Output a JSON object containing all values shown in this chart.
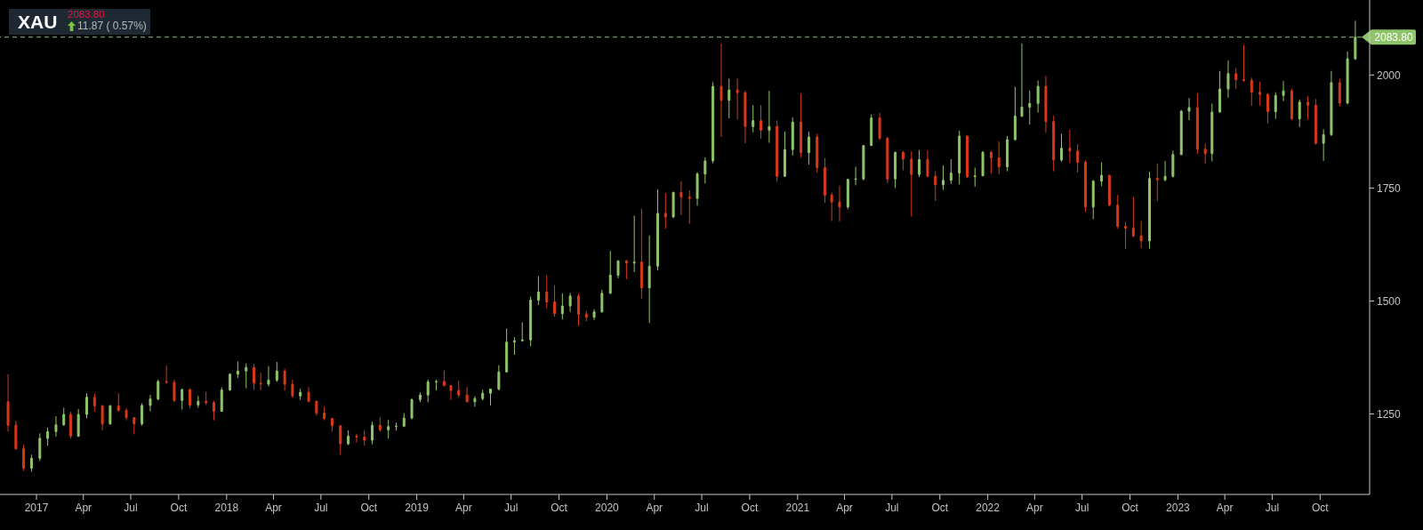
{
  "chart_data": {
    "type": "candlestick",
    "title": "XAU",
    "subtitle": "2083.80",
    "annotations": [
      "11.87 ( 0.57%)"
    ],
    "x": [
      "2016-11-08",
      "2016-11-23",
      "2016-12-08",
      "2016-12-23",
      "2017-01-08",
      "2017-01-23",
      "2017-02-08",
      "2017-02-23",
      "2017-03-08",
      "2017-03-23",
      "2017-04-08",
      "2017-04-23",
      "2017-05-08",
      "2017-05-23",
      "2017-06-08",
      "2017-06-23",
      "2017-07-08",
      "2017-07-23",
      "2017-08-08",
      "2017-08-23",
      "2017-09-08",
      "2017-09-23",
      "2017-10-08",
      "2017-10-23",
      "2017-11-08",
      "2017-11-23",
      "2017-12-08",
      "2017-12-23",
      "2018-01-08",
      "2018-01-23",
      "2018-02-08",
      "2018-02-23",
      "2018-03-08",
      "2018-03-23",
      "2018-04-08",
      "2018-04-23",
      "2018-05-08",
      "2018-05-23",
      "2018-06-08",
      "2018-06-23",
      "2018-07-08",
      "2018-07-23",
      "2018-08-08",
      "2018-08-23",
      "2018-09-08",
      "2018-09-23",
      "2018-10-08",
      "2018-10-23",
      "2018-11-08",
      "2018-11-23",
      "2018-12-08",
      "2018-12-23",
      "2019-01-08",
      "2019-01-23",
      "2019-02-08",
      "2019-02-23",
      "2019-03-08",
      "2019-03-23",
      "2019-04-08",
      "2019-04-23",
      "2019-05-08",
      "2019-05-23",
      "2019-06-08",
      "2019-06-23",
      "2019-07-08",
      "2019-07-23",
      "2019-08-08",
      "2019-08-23",
      "2019-09-08",
      "2019-09-23",
      "2019-10-08",
      "2019-10-23",
      "2019-11-08",
      "2019-11-23",
      "2019-12-08",
      "2019-12-23",
      "2020-01-08",
      "2020-01-23",
      "2020-02-08",
      "2020-02-23",
      "2020-03-08",
      "2020-03-23",
      "2020-04-08",
      "2020-04-23",
      "2020-05-08",
      "2020-05-23",
      "2020-06-08",
      "2020-06-23",
      "2020-07-08",
      "2020-07-23",
      "2020-08-08",
      "2020-08-23",
      "2020-09-08",
      "2020-09-23",
      "2020-10-08",
      "2020-10-23",
      "2020-11-08",
      "2020-11-23",
      "2020-12-08",
      "2020-12-23",
      "2021-01-08",
      "2021-01-23",
      "2021-02-08",
      "2021-02-23",
      "2021-03-08",
      "2021-03-23",
      "2021-04-08",
      "2021-04-23",
      "2021-05-08",
      "2021-05-23",
      "2021-06-08",
      "2021-06-23",
      "2021-07-08",
      "2021-07-23",
      "2021-08-08",
      "2021-08-23",
      "2021-09-08",
      "2021-09-23",
      "2021-10-08",
      "2021-10-23",
      "2021-11-08",
      "2021-11-23",
      "2021-12-08",
      "2021-12-23",
      "2022-01-08",
      "2022-01-23",
      "2022-02-08",
      "2022-02-23",
      "2022-03-08",
      "2022-03-23",
      "2022-04-08",
      "2022-04-23",
      "2022-05-08",
      "2022-05-23",
      "2022-06-08",
      "2022-06-23",
      "2022-07-08",
      "2022-07-23",
      "2022-08-08",
      "2022-08-23",
      "2022-09-08",
      "2022-09-23",
      "2022-10-08",
      "2022-10-23",
      "2022-11-08",
      "2022-11-23",
      "2022-12-08",
      "2022-12-23",
      "2023-01-08",
      "2023-01-23",
      "2023-02-08",
      "2023-02-23",
      "2023-03-08",
      "2023-03-23",
      "2023-04-08",
      "2023-04-23",
      "2023-05-08",
      "2023-05-23",
      "2023-06-08",
      "2023-06-23",
      "2023-07-08",
      "2023-07-23",
      "2023-08-08",
      "2023-08-23",
      "2023-09-08",
      "2023-09-23",
      "2023-10-08",
      "2023-10-23",
      "2023-11-08",
      "2023-11-23",
      "2023-12-08"
    ],
    "ohlc": [
      [
        1277,
        1338,
        1211,
        1225
      ],
      [
        1225,
        1235,
        1171,
        1173
      ],
      [
        1173,
        1182,
        1124,
        1130
      ],
      [
        1130,
        1160,
        1122,
        1152
      ],
      [
        1152,
        1207,
        1146,
        1196
      ],
      [
        1196,
        1220,
        1180,
        1211
      ],
      [
        1211,
        1245,
        1200,
        1226
      ],
      [
        1226,
        1264,
        1224,
        1249
      ],
      [
        1249,
        1255,
        1195,
        1201
      ],
      [
        1201,
        1261,
        1199,
        1249
      ],
      [
        1249,
        1296,
        1240,
        1287
      ],
      [
        1287,
        1295,
        1255,
        1268
      ],
      [
        1268,
        1270,
        1214,
        1228
      ],
      [
        1228,
        1270,
        1226,
        1268
      ],
      [
        1268,
        1296,
        1255,
        1258
      ],
      [
        1258,
        1263,
        1236,
        1242
      ],
      [
        1242,
        1242,
        1205,
        1228
      ],
      [
        1228,
        1274,
        1224,
        1269
      ],
      [
        1269,
        1292,
        1256,
        1283
      ],
      [
        1283,
        1326,
        1280,
        1322
      ],
      [
        1322,
        1357,
        1317,
        1320
      ],
      [
        1320,
        1326,
        1276,
        1280
      ],
      [
        1280,
        1306,
        1260,
        1304
      ],
      [
        1304,
        1306,
        1263,
        1270
      ],
      [
        1270,
        1290,
        1264,
        1278
      ],
      [
        1278,
        1299,
        1270,
        1275
      ],
      [
        1275,
        1279,
        1236,
        1256
      ],
      [
        1256,
        1309,
        1255,
        1303
      ],
      [
        1303,
        1340,
        1301,
        1338
      ],
      [
        1338,
        1366,
        1330,
        1345
      ],
      [
        1345,
        1362,
        1307,
        1353
      ],
      [
        1353,
        1361,
        1303,
        1318
      ],
      [
        1318,
        1341,
        1303,
        1316
      ],
      [
        1316,
        1356,
        1311,
        1325
      ],
      [
        1325,
        1365,
        1321,
        1345
      ],
      [
        1345,
        1350,
        1302,
        1316
      ],
      [
        1316,
        1326,
        1286,
        1290
      ],
      [
        1290,
        1306,
        1281,
        1298
      ],
      [
        1298,
        1310,
        1276,
        1278
      ],
      [
        1278,
        1280,
        1246,
        1252
      ],
      [
        1252,
        1266,
        1236,
        1240
      ],
      [
        1240,
        1241,
        1211,
        1224
      ],
      [
        1224,
        1225,
        1160,
        1184
      ],
      [
        1184,
        1214,
        1181,
        1201
      ],
      [
        1201,
        1206,
        1187,
        1199
      ],
      [
        1199,
        1214,
        1180,
        1192
      ],
      [
        1192,
        1233,
        1183,
        1225
      ],
      [
        1225,
        1243,
        1211,
        1215
      ],
      [
        1215,
        1237,
        1196,
        1222
      ],
      [
        1222,
        1231,
        1213,
        1223
      ],
      [
        1223,
        1252,
        1221,
        1241
      ],
      [
        1241,
        1284,
        1238,
        1282
      ],
      [
        1282,
        1298,
        1276,
        1292
      ],
      [
        1292,
        1326,
        1276,
        1321
      ],
      [
        1321,
        1326,
        1302,
        1322
      ],
      [
        1322,
        1346,
        1311,
        1313
      ],
      [
        1313,
        1314,
        1281,
        1302
      ],
      [
        1302,
        1324,
        1287,
        1292
      ],
      [
        1292,
        1310,
        1276,
        1277
      ],
      [
        1277,
        1289,
        1266,
        1284
      ],
      [
        1284,
        1304,
        1280,
        1296
      ],
      [
        1296,
        1306,
        1269,
        1305
      ],
      [
        1305,
        1358,
        1302,
        1343
      ],
      [
        1343,
        1439,
        1342,
        1409
      ],
      [
        1409,
        1420,
        1381,
        1412
      ],
      [
        1412,
        1453,
        1410,
        1414
      ],
      [
        1414,
        1510,
        1400,
        1502
      ],
      [
        1502,
        1555,
        1491,
        1520
      ],
      [
        1520,
        1557,
        1484,
        1498
      ],
      [
        1498,
        1535,
        1465,
        1472
      ],
      [
        1472,
        1517,
        1459,
        1489
      ],
      [
        1489,
        1518,
        1476,
        1511
      ],
      [
        1511,
        1516,
        1445,
        1471
      ],
      [
        1471,
        1478,
        1455,
        1464
      ],
      [
        1464,
        1482,
        1458,
        1476
      ],
      [
        1476,
        1525,
        1474,
        1517
      ],
      [
        1517,
        1611,
        1516,
        1557
      ],
      [
        1557,
        1589,
        1550,
        1589
      ],
      [
        1589,
        1590,
        1548,
        1584
      ],
      [
        1584,
        1689,
        1564,
        1586
      ],
      [
        1586,
        1704,
        1505,
        1529
      ],
      [
        1529,
        1645,
        1451,
        1577
      ],
      [
        1577,
        1747,
        1568,
        1694
      ],
      [
        1694,
        1739,
        1660,
        1686
      ],
      [
        1686,
        1742,
        1683,
        1740
      ],
      [
        1740,
        1765,
        1690,
        1730
      ],
      [
        1730,
        1745,
        1671,
        1727
      ],
      [
        1727,
        1785,
        1711,
        1781
      ],
      [
        1781,
        1818,
        1760,
        1810
      ],
      [
        1810,
        1984,
        1805,
        1975
      ],
      [
        1975,
        2070,
        1863,
        1944
      ],
      [
        1944,
        1992,
        1904,
        1967
      ],
      [
        1967,
        1992,
        1902,
        1961
      ],
      [
        1961,
        1965,
        1849,
        1886
      ],
      [
        1886,
        1933,
        1873,
        1899
      ],
      [
        1899,
        1933,
        1859,
        1878
      ],
      [
        1878,
        1965,
        1850,
        1886
      ],
      [
        1886,
        1900,
        1764,
        1776
      ],
      [
        1776,
        1875,
        1775,
        1835
      ],
      [
        1835,
        1906,
        1822,
        1896
      ],
      [
        1896,
        1959,
        1817,
        1828
      ],
      [
        1828,
        1875,
        1802,
        1863
      ],
      [
        1863,
        1870,
        1784,
        1795
      ],
      [
        1795,
        1816,
        1717,
        1734
      ],
      [
        1734,
        1740,
        1677,
        1719
      ],
      [
        1719,
        1755,
        1676,
        1708
      ],
      [
        1708,
        1770,
        1703,
        1769
      ],
      [
        1769,
        1797,
        1756,
        1770
      ],
      [
        1770,
        1845,
        1767,
        1844
      ],
      [
        1844,
        1913,
        1843,
        1905
      ],
      [
        1905,
        1916,
        1856,
        1860
      ],
      [
        1860,
        1863,
        1761,
        1770
      ],
      [
        1770,
        1830,
        1750,
        1829
      ],
      [
        1829,
        1832,
        1789,
        1814
      ],
      [
        1814,
        1831,
        1687,
        1780
      ],
      [
        1780,
        1834,
        1774,
        1813
      ],
      [
        1813,
        1834,
        1774,
        1776
      ],
      [
        1776,
        1787,
        1721,
        1757
      ],
      [
        1757,
        1800,
        1746,
        1767
      ],
      [
        1767,
        1814,
        1759,
        1783
      ],
      [
        1783,
        1877,
        1758,
        1865
      ],
      [
        1865,
        1866,
        1772,
        1775
      ],
      [
        1775,
        1795,
        1753,
        1777
      ],
      [
        1777,
        1832,
        1776,
        1829
      ],
      [
        1829,
        1832,
        1782,
        1817
      ],
      [
        1817,
        1853,
        1780,
        1797
      ],
      [
        1797,
        1865,
        1787,
        1857
      ],
      [
        1857,
        1974,
        1855,
        1909
      ],
      [
        1909,
        2070,
        1907,
        1929
      ],
      [
        1929,
        1966,
        1890,
        1937
      ],
      [
        1937,
        1988,
        1917,
        1975
      ],
      [
        1975,
        1998,
        1872,
        1897
      ],
      [
        1897,
        1910,
        1787,
        1812
      ],
      [
        1812,
        1870,
        1808,
        1838
      ],
      [
        1838,
        1879,
        1805,
        1832
      ],
      [
        1832,
        1847,
        1784,
        1807
      ],
      [
        1807,
        1812,
        1697,
        1708
      ],
      [
        1708,
        1768,
        1681,
        1765
      ],
      [
        1765,
        1807,
        1754,
        1778
      ],
      [
        1778,
        1779,
        1710,
        1712
      ],
      [
        1712,
        1735,
        1660,
        1665
      ],
      [
        1665,
        1675,
        1615,
        1661
      ],
      [
        1661,
        1730,
        1641,
        1644
      ],
      [
        1644,
        1677,
        1617,
        1633
      ],
      [
        1633,
        1786,
        1616,
        1771
      ],
      [
        1771,
        1804,
        1721,
        1768
      ],
      [
        1768,
        1810,
        1765,
        1776
      ],
      [
        1776,
        1833,
        1773,
        1824
      ],
      [
        1824,
        1923,
        1823,
        1920
      ],
      [
        1920,
        1949,
        1900,
        1928
      ],
      [
        1928,
        1960,
        1825,
        1836
      ],
      [
        1836,
        1848,
        1804,
        1826
      ],
      [
        1826,
        1937,
        1809,
        1918
      ],
      [
        1918,
        2009,
        1917,
        1969
      ],
      [
        1969,
        2032,
        1950,
        2003
      ],
      [
        2003,
        2015,
        1969,
        1990
      ],
      [
        1990,
        2067,
        1985,
        1988
      ],
      [
        1988,
        1994,
        1932,
        1962
      ],
      [
        1962,
        1985,
        1932,
        1957
      ],
      [
        1957,
        1960,
        1893,
        1919
      ],
      [
        1919,
        1962,
        1903,
        1955
      ],
      [
        1955,
        1987,
        1942,
        1965
      ],
      [
        1965,
        1970,
        1901,
        1903
      ],
      [
        1903,
        1946,
        1885,
        1940
      ],
      [
        1940,
        1953,
        1901,
        1933
      ],
      [
        1933,
        1947,
        1846,
        1849
      ],
      [
        1849,
        1880,
        1810,
        1868
      ],
      [
        1868,
        2009,
        1865,
        1983
      ],
      [
        1983,
        1992,
        1931,
        1938
      ],
      [
        1938,
        2052,
        1935,
        2036
      ],
      [
        2036,
        2120,
        2033,
        2083.8
      ]
    ],
    "colors": [
      "#d9391a",
      "#d9391a",
      "#d9391a",
      "#8fc56a",
      "#8fc56a",
      "#8fc56a",
      "#8fc56a",
      "#8fc56a",
      "#d9391a",
      "#8fc56a",
      "#8fc56a",
      "#d9391a",
      "#d9391a",
      "#8fc56a",
      "#d9391a",
      "#d9391a",
      "#d9391a",
      "#8fc56a",
      "#8fc56a",
      "#8fc56a",
      "#d9391a",
      "#d9391a",
      "#8fc56a",
      "#d9391a",
      "#8fc56a",
      "#d9391a",
      "#d9391a",
      "#8fc56a",
      "#8fc56a",
      "#8fc56a",
      "#8fc56a",
      "#d9391a",
      "#d9391a",
      "#8fc56a",
      "#8fc56a",
      "#d9391a",
      "#d9391a",
      "#8fc56a",
      "#d9391a",
      "#d9391a",
      "#d9391a",
      "#d9391a",
      "#d9391a",
      "#8fc56a",
      "#d9391a",
      "#d9391a",
      "#8fc56a",
      "#d9391a",
      "#8fc56a",
      "#8fc56a",
      "#8fc56a",
      "#8fc56a",
      "#8fc56a",
      "#8fc56a",
      "#8fc56a",
      "#d9391a",
      "#d9391a",
      "#d9391a",
      "#d9391a",
      "#8fc56a",
      "#8fc56a",
      "#8fc56a",
      "#8fc56a",
      "#8fc56a",
      "#8fc56a",
      "#8fc56a",
      "#8fc56a",
      "#8fc56a",
      "#d9391a",
      "#d9391a",
      "#8fc56a",
      "#8fc56a",
      "#d9391a",
      "#d9391a",
      "#8fc56a",
      "#8fc56a",
      "#8fc56a",
      "#8fc56a",
      "#d9391a",
      "#8fc56a",
      "#d9391a",
      "#8fc56a",
      "#8fc56a",
      "#d9391a",
      "#8fc56a",
      "#d9391a",
      "#d9391a",
      "#8fc56a",
      "#8fc56a",
      "#8fc56a",
      "#d9391a",
      "#8fc56a",
      "#d9391a",
      "#d9391a",
      "#8fc56a",
      "#d9391a",
      "#8fc56a",
      "#d9391a",
      "#8fc56a",
      "#8fc56a",
      "#d9391a",
      "#8fc56a",
      "#d9391a",
      "#d9391a",
      "#d9391a",
      "#d9391a",
      "#8fc56a",
      "#8fc56a",
      "#8fc56a",
      "#8fc56a",
      "#d9391a",
      "#d9391a",
      "#8fc56a",
      "#d9391a",
      "#d9391a",
      "#8fc56a",
      "#d9391a",
      "#d9391a",
      "#8fc56a",
      "#8fc56a",
      "#8fc56a",
      "#d9391a",
      "#8fc56a",
      "#8fc56a",
      "#d9391a",
      "#d9391a",
      "#8fc56a",
      "#8fc56a",
      "#8fc56a",
      "#8fc56a",
      "#8fc56a",
      "#d9391a",
      "#d9391a",
      "#8fc56a",
      "#d9391a",
      "#d9391a",
      "#d9391a",
      "#8fc56a",
      "#8fc56a",
      "#d9391a",
      "#d9391a",
      "#d9391a",
      "#d9391a",
      "#d9391a",
      "#8fc56a",
      "#d9391a",
      "#8fc56a",
      "#8fc56a",
      "#8fc56a",
      "#8fc56a",
      "#d9391a",
      "#d9391a",
      "#8fc56a",
      "#8fc56a",
      "#8fc56a",
      "#d9391a",
      "#d9391a",
      "#d9391a",
      "#d9391a",
      "#d9391a",
      "#8fc56a",
      "#8fc56a",
      "#d9391a",
      "#8fc56a",
      "#d9391a",
      "#d9391a",
      "#8fc56a",
      "#8fc56a",
      "#d9391a",
      "#8fc56a",
      "#8fc56a"
    ],
    "xlim": [
      "2016-10-23",
      "2024-01-04"
    ],
    "xticks": [
      {
        "value": "2017-01",
        "label": "2017"
      },
      {
        "value": "2017-04",
        "label": "Apr"
      },
      {
        "value": "2017-07",
        "label": "Jul"
      },
      {
        "value": "2017-10",
        "label": "Oct"
      },
      {
        "value": "2018-01",
        "label": "2018"
      },
      {
        "value": "2018-04",
        "label": "Apr"
      },
      {
        "value": "2018-07",
        "label": "Jul"
      },
      {
        "value": "2018-10",
        "label": "Oct"
      },
      {
        "value": "2019-01",
        "label": "2019"
      },
      {
        "value": "2019-04",
        "label": "Apr"
      },
      {
        "value": "2019-07",
        "label": "Jul"
      },
      {
        "value": "2019-10",
        "label": "Oct"
      },
      {
        "value": "2020-01",
        "label": "2020"
      },
      {
        "value": "2020-04",
        "label": "Apr"
      },
      {
        "value": "2020-07",
        "label": "Jul"
      },
      {
        "value": "2020-10",
        "label": "Oct"
      },
      {
        "value": "2021-01",
        "label": "2021"
      },
      {
        "value": "2021-04",
        "label": "Apr"
      },
      {
        "value": "2021-07",
        "label": "Jul"
      },
      {
        "value": "2021-10",
        "label": "Oct"
      },
      {
        "value": "2022-01",
        "label": "2022"
      },
      {
        "value": "2022-04",
        "label": "Apr"
      },
      {
        "value": "2022-07",
        "label": "Jul"
      },
      {
        "value": "2022-10",
        "label": "Oct"
      },
      {
        "value": "2023-01",
        "label": "2023"
      },
      {
        "value": "2023-04",
        "label": "Apr"
      },
      {
        "value": "2023-07",
        "label": "Jul"
      },
      {
        "value": "2023-10",
        "label": "Oct"
      }
    ],
    "ylim": [
      1072,
      2166
    ],
    "yticks": [
      1250,
      1500,
      1750,
      2000
    ],
    "ref_lines": [
      {
        "axis": "y",
        "value": 2083.8,
        "label": "2083.80",
        "color": "#8fc56a",
        "line_style": "dashed"
      }
    ]
  }
}
